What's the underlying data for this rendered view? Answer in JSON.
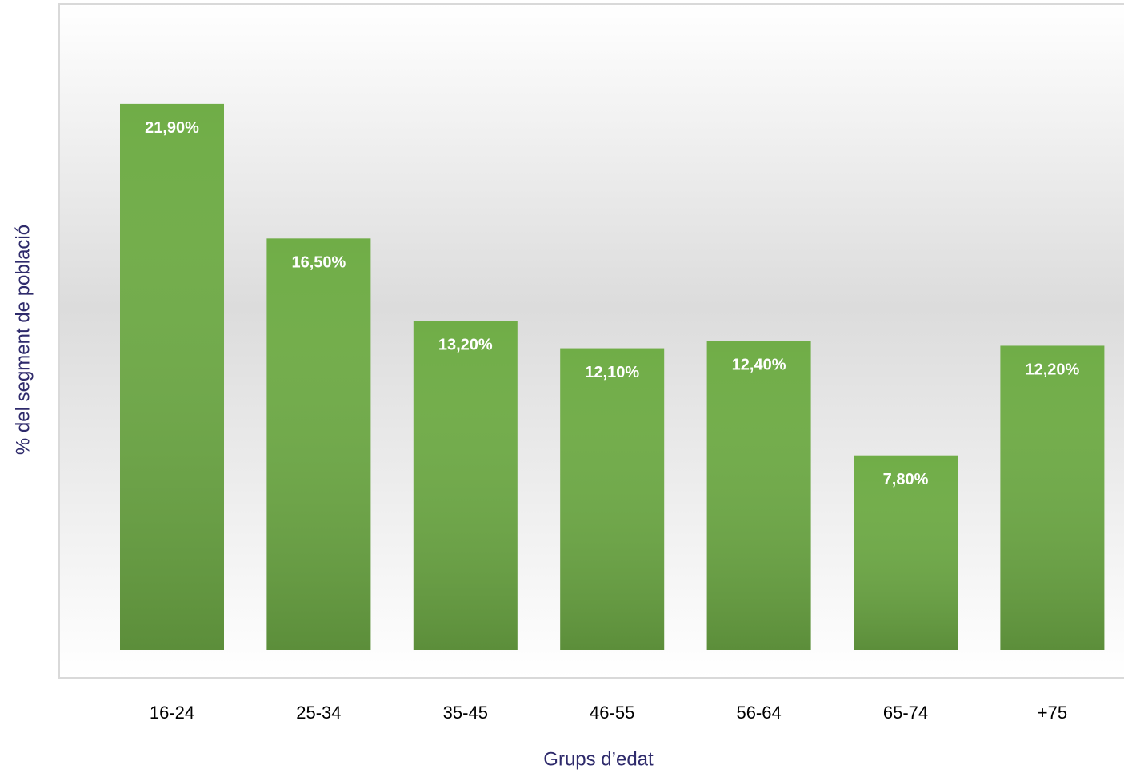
{
  "chart_data": {
    "type": "bar",
    "x_label": "Grups d’edat",
    "y_label": "% del segment de població",
    "categories": [
      "16-24",
      "25-34",
      "35-45",
      "46-55",
      "56-64",
      "65-74",
      "+75"
    ],
    "values": [
      21.9,
      16.5,
      13.2,
      12.1,
      12.4,
      7.8,
      12.2
    ],
    "value_labels": [
      "21,90%",
      "16,50%",
      "13,20%",
      "12,10%",
      "12,40%",
      "7,80%",
      "12,20%"
    ],
    "color": "#70ad47",
    "ylim": [
      0,
      26
    ]
  }
}
